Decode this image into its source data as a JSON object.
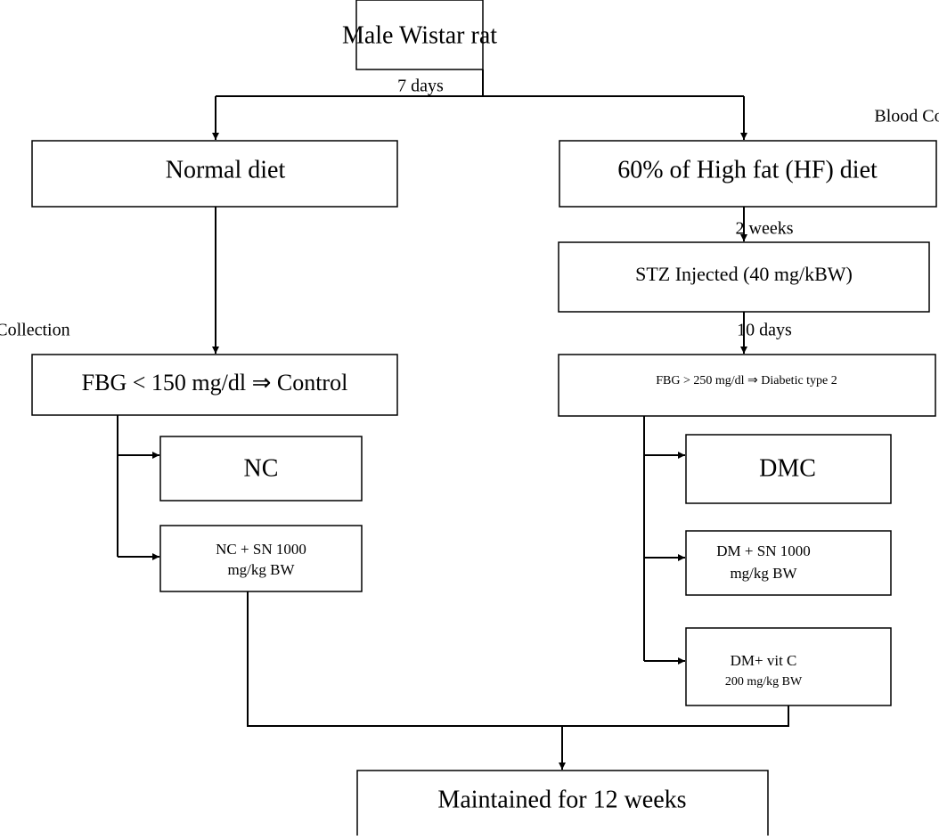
{
  "nodes": [
    {
      "label": [
        "Male Wistar rat"
      ]
    },
    {
      "label": [
        "Normal diet"
      ]
    },
    {
      "label": [
        "60% of High fat (HF) diet"
      ]
    },
    {
      "label": [
        "STZ Injected (40 mg/kBW)"
      ]
    },
    {
      "label": [
        "FBG < 150 mg/dl ⇒ Control"
      ]
    },
    {
      "label": [
        "FBG > 250 mg/dl ⇒ Diabetic type 2"
      ]
    },
    {
      "label": [
        "NC"
      ]
    },
    {
      "label": [
        "NC + SN 1000",
        "mg/kg BW"
      ]
    },
    {
      "label": [
        "DMC"
      ]
    },
    {
      "label": [
        "DM + SN 1000",
        "mg/kg BW"
      ]
    },
    {
      "label": [
        "DM+ vit C",
        "200 mg/kg BW"
      ]
    },
    {
      "label": [
        "Maintained for 12 weeks"
      ]
    }
  ],
  "edge_labels": [
    "7 days",
    "Blood Collection",
    "2 weeks",
    "10 days",
    "Blood Collection"
  ]
}
